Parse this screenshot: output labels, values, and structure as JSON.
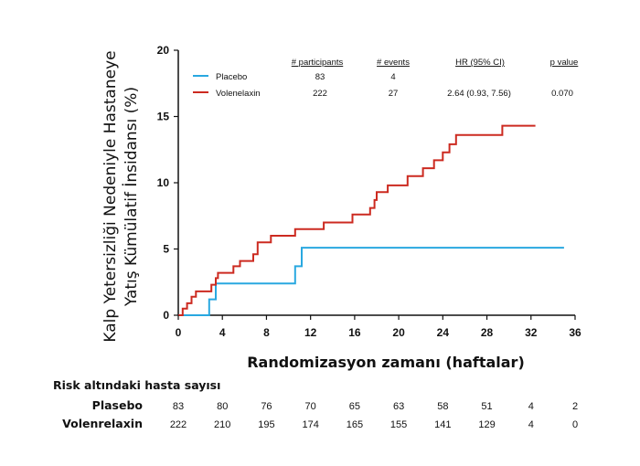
{
  "chart_data": {
    "type": "line",
    "step": true,
    "ylabel_line1": "Kalp Yetersizliği Nedeniyle Hastaneye",
    "ylabel_line2": "Yatış Kümülatif İnsidansı (%)",
    "xlabel": "Randomizasyon zamanı (haftalar)",
    "xlim": [
      0,
      36
    ],
    "ylim": [
      0,
      20
    ],
    "xticks": [
      "0",
      "4",
      "8",
      "12",
      "16",
      "20",
      "24",
      "28",
      "32",
      "36"
    ],
    "yticks": [
      "0",
      "5",
      "10",
      "15",
      "20"
    ],
    "grid": false,
    "legend_position": "top",
    "legend_headers": [
      "# participants",
      "# events",
      "HR (95% CI)",
      "p value"
    ],
    "series": [
      {
        "name": "Placebo",
        "color": "#29a8e0",
        "participants": "83",
        "events": "4",
        "hr": "",
        "p": "",
        "points": [
          [
            0,
            0
          ],
          [
            2.8,
            0
          ],
          [
            2.8,
            1.2
          ],
          [
            3.4,
            1.2
          ],
          [
            3.4,
            2.4
          ],
          [
            10.6,
            2.4
          ],
          [
            10.6,
            3.7
          ],
          [
            11.2,
            3.7
          ],
          [
            11.2,
            5.1
          ],
          [
            35,
            5.1
          ]
        ]
      },
      {
        "name": "Volenelaxin",
        "color": "#cc2a20",
        "participants": "222",
        "events": "27",
        "hr": "2.64 (0.93, 7.56)",
        "p": "0.070",
        "points": [
          [
            0,
            0
          ],
          [
            0.4,
            0
          ],
          [
            0.4,
            0.5
          ],
          [
            0.8,
            0.5
          ],
          [
            0.8,
            0.9
          ],
          [
            1.2,
            0.9
          ],
          [
            1.2,
            1.4
          ],
          [
            1.6,
            1.4
          ],
          [
            1.6,
            1.8
          ],
          [
            3.0,
            1.8
          ],
          [
            3.0,
            2.3
          ],
          [
            3.4,
            2.3
          ],
          [
            3.4,
            2.8
          ],
          [
            3.6,
            2.8
          ],
          [
            3.6,
            3.2
          ],
          [
            5.0,
            3.2
          ],
          [
            5.0,
            3.7
          ],
          [
            5.6,
            3.7
          ],
          [
            5.6,
            4.1
          ],
          [
            6.8,
            4.1
          ],
          [
            6.8,
            4.6
          ],
          [
            7.2,
            4.6
          ],
          [
            7.2,
            5.5
          ],
          [
            8.4,
            5.5
          ],
          [
            8.4,
            6.0
          ],
          [
            10.6,
            6.0
          ],
          [
            10.6,
            6.5
          ],
          [
            13.2,
            6.5
          ],
          [
            13.2,
            7.0
          ],
          [
            15.8,
            7.0
          ],
          [
            15.8,
            7.6
          ],
          [
            17.4,
            7.6
          ],
          [
            17.4,
            8.1
          ],
          [
            17.8,
            8.1
          ],
          [
            17.8,
            8.7
          ],
          [
            18.0,
            8.7
          ],
          [
            18.0,
            9.3
          ],
          [
            19.0,
            9.3
          ],
          [
            19.0,
            9.8
          ],
          [
            20.8,
            9.8
          ],
          [
            20.8,
            10.5
          ],
          [
            22.2,
            10.5
          ],
          [
            22.2,
            11.1
          ],
          [
            23.2,
            11.1
          ],
          [
            23.2,
            11.7
          ],
          [
            24.0,
            11.7
          ],
          [
            24.0,
            12.3
          ],
          [
            24.6,
            12.3
          ],
          [
            24.6,
            12.9
          ],
          [
            25.2,
            12.9
          ],
          [
            25.2,
            13.6
          ],
          [
            29.4,
            13.6
          ],
          [
            29.4,
            14.3
          ],
          [
            32.4,
            14.3
          ]
        ]
      }
    ]
  },
  "risk_table": {
    "title": "Risk altındaki hasta sayısı",
    "rows": [
      {
        "name": "Plasebo",
        "values": [
          "83",
          "80",
          "76",
          "70",
          "65",
          "63",
          "58",
          "51",
          "4",
          "2"
        ]
      },
      {
        "name": "Volenrelaxin",
        "values": [
          "222",
          "210",
          "195",
          "174",
          "165",
          "155",
          "141",
          "129",
          "4",
          "0"
        ]
      }
    ]
  }
}
